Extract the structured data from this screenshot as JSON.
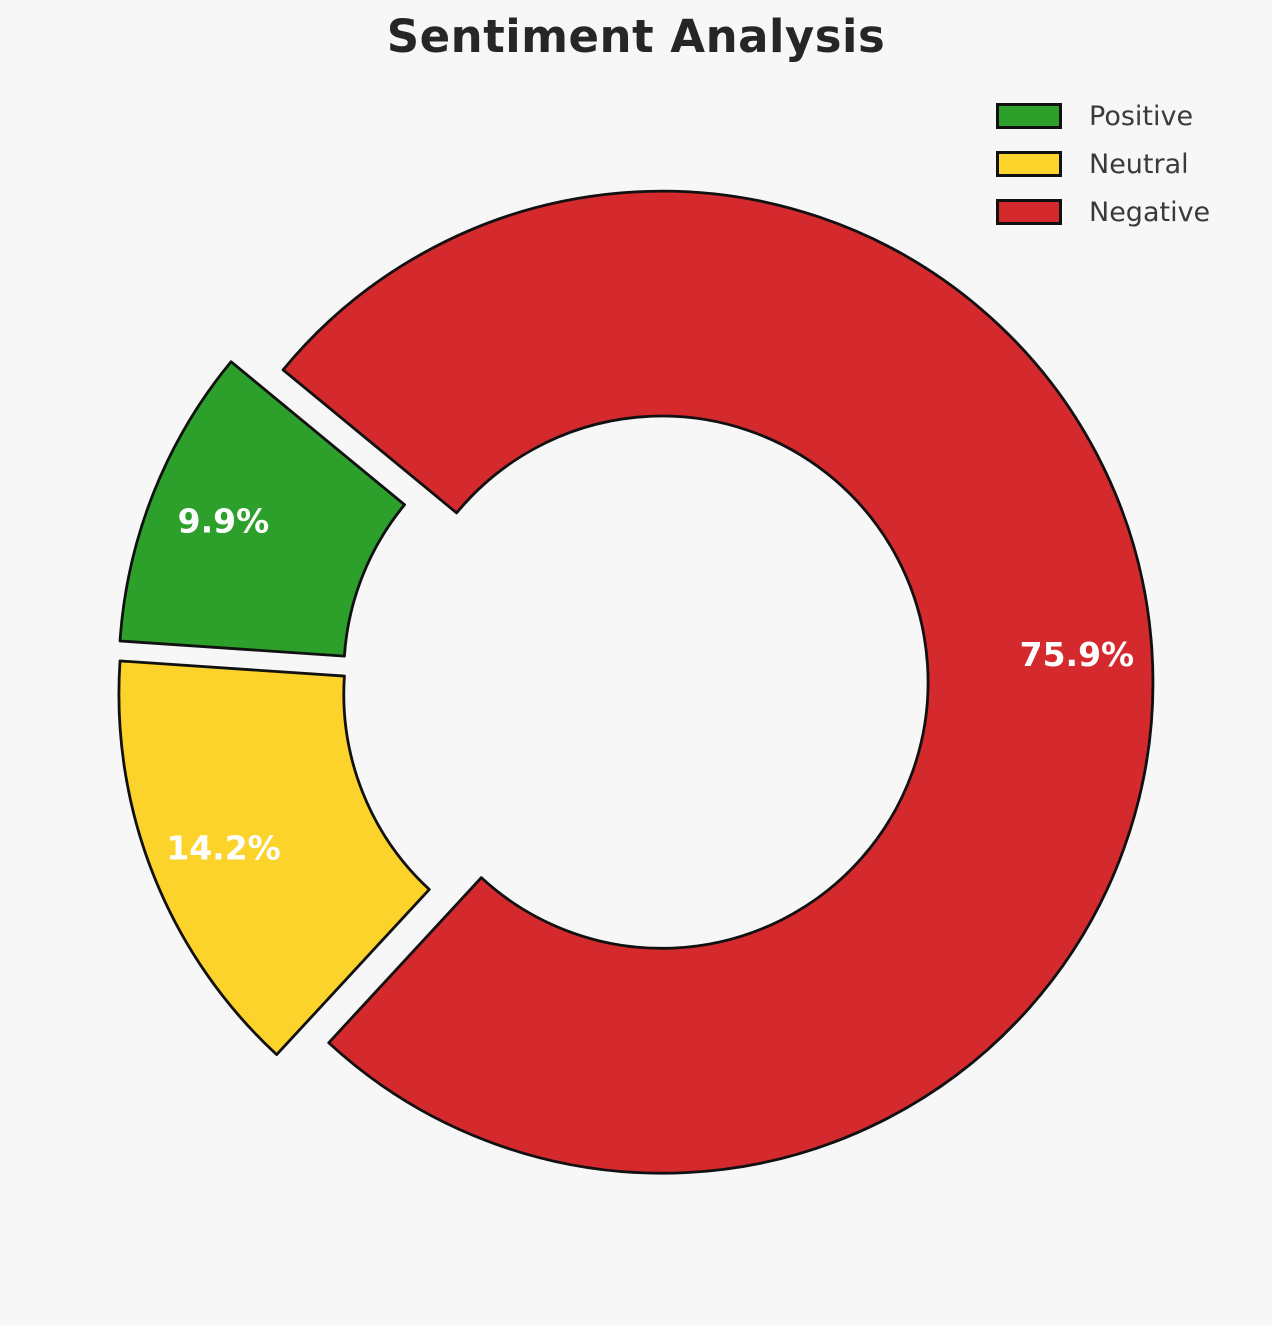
{
  "page": {
    "background": "#F7F7F7"
  },
  "chart_data": {
    "type": "pie",
    "subtype": "donut-exploded",
    "title": "Sentiment Analysis",
    "labels": [
      "Positive",
      "Neutral",
      "Negative"
    ],
    "values": [
      9.9,
      14.2,
      75.9
    ],
    "pct_labels": [
      "9.9%",
      "14.2%",
      "75.9%"
    ],
    "colors": [
      "#2DA02C",
      "#FBD32B",
      "#D4292D"
    ],
    "legend": {
      "position": "upper right",
      "entries": [
        "Positive",
        "Neutral",
        "Negative"
      ]
    },
    "layout": {
      "startangle": 140.5,
      "counterclock": true,
      "explode": 0.055,
      "donut_hole": 0.542,
      "pct_distance": 0.847,
      "edge_color": "#111111",
      "edge_width": 2.8,
      "label_color": "#ffffff",
      "title_color": "#262626",
      "legend_text_color": "#3a3a3a",
      "background": "#F7F7F7",
      "grid": false
    }
  }
}
